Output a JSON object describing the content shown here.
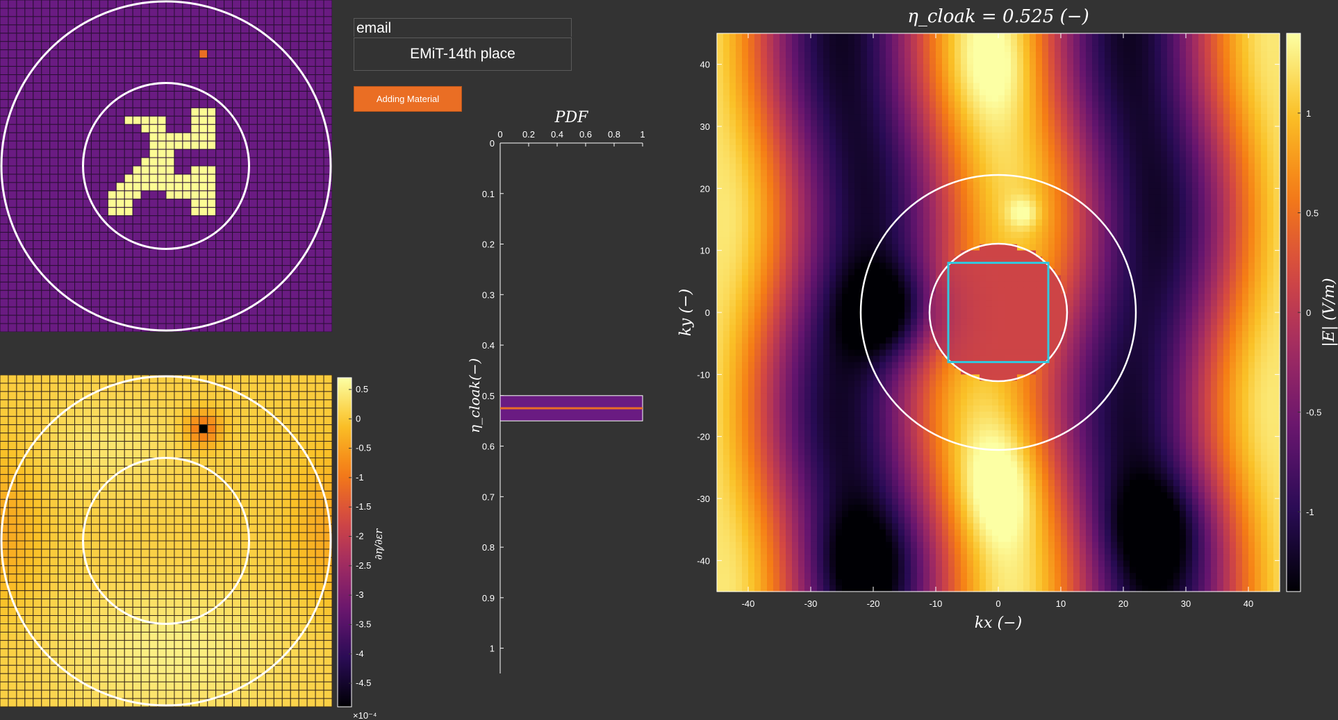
{
  "controls": {
    "email_value": "email",
    "team_name": "EMiT-14th place",
    "adding_material_label": "Adding Material"
  },
  "colors": {
    "background": "#333333",
    "button": "#ea6e24",
    "material": "#fcfc94",
    "background_cell": "#6a1b82",
    "marker": "#ea6e24",
    "cloak_box": "#33c7dd"
  },
  "design_grid": {
    "n": 40,
    "material_rows": [
      {
        "row": 13,
        "cols": [
          23,
          24,
          25
        ]
      },
      {
        "row": 14,
        "cols": [
          15,
          16,
          17,
          18,
          19,
          23,
          24,
          25
        ]
      },
      {
        "row": 15,
        "cols": [
          17,
          18,
          19,
          23,
          24,
          25
        ]
      },
      {
        "row": 16,
        "cols": [
          18,
          19,
          20,
          21,
          22,
          23,
          24,
          25
        ]
      },
      {
        "row": 17,
        "cols": [
          18,
          19,
          20,
          21,
          22,
          23,
          24,
          25
        ]
      },
      {
        "row": 18,
        "cols": [
          18,
          19,
          20
        ]
      },
      {
        "row": 19,
        "cols": [
          17,
          18,
          19,
          20
        ]
      },
      {
        "row": 20,
        "cols": [
          16,
          17,
          18,
          19,
          20,
          23,
          24,
          25
        ]
      },
      {
        "row": 21,
        "cols": [
          15,
          16,
          17,
          18,
          19,
          20,
          21,
          22,
          23,
          24,
          25
        ]
      },
      {
        "row": 22,
        "cols": [
          14,
          15,
          16,
          17,
          18,
          19,
          20,
          21,
          22,
          23,
          24,
          25
        ]
      },
      {
        "row": 23,
        "cols": [
          13,
          14,
          15,
          16,
          20,
          21,
          22,
          23,
          24,
          25
        ]
      },
      {
        "row": 24,
        "cols": [
          13,
          14,
          15,
          23,
          24,
          25
        ]
      },
      {
        "row": 25,
        "cols": [
          13,
          14,
          15,
          23,
          24,
          25
        ]
      }
    ],
    "marker_cell": {
      "row": 6,
      "col": 24
    }
  },
  "sensitivity_map": {
    "n": 40,
    "colorbar_ticks": [
      "0.5",
      "0",
      "-0.5",
      "-1",
      "-1.5",
      "-2",
      "-2.5",
      "-3",
      "-3.5",
      "-4",
      "-4.5"
    ],
    "colorbar_range": [
      -4.9,
      0.7
    ],
    "colorbar_label": "∂η/∂εr",
    "exponent": "×10⁻⁴"
  },
  "chart_data": [
    {
      "type": "bar",
      "title": "PDF",
      "ylabel": "η_cloak(−)",
      "xlim": [
        0,
        1
      ],
      "ylim": [
        0,
        1.05
      ],
      "x_ticks": [
        "0",
        "0.2",
        "0.4",
        "0.6",
        "0.8",
        "1"
      ],
      "y_ticks": [
        "0",
        "0.1",
        "0.2",
        "0.3",
        "0.4",
        "0.5",
        "0.6",
        "0.7",
        "0.8",
        "0.9",
        "1"
      ],
      "bars": [
        {
          "y_from": 0.5,
          "y_to": 0.55,
          "value": 1
        }
      ],
      "indicator_line": 0.525
    },
    {
      "type": "heatmap",
      "title": "η_cloak = 0.525 (−)",
      "xlabel": "kx (−)",
      "ylabel": "ky (−)",
      "colorbar_label": "|E| (V/m)",
      "xlim": [
        -45,
        45
      ],
      "ylim": [
        -45,
        45
      ],
      "x_ticks": [
        "-40",
        "-30",
        "-20",
        "-10",
        "0",
        "10",
        "20",
        "30",
        "40"
      ],
      "y_ticks": [
        "40",
        "30",
        "20",
        "10",
        "0",
        "-10",
        "-20",
        "-30",
        "-40"
      ],
      "colorbar_ticks": [
        "1",
        "0.5",
        "0",
        "-0.5",
        "-1"
      ],
      "colorbar_range": [
        -1.4,
        1.4
      ],
      "circles_radius": [
        22,
        11
      ],
      "cloak_box": [
        -8,
        8,
        -8,
        8
      ]
    }
  ]
}
